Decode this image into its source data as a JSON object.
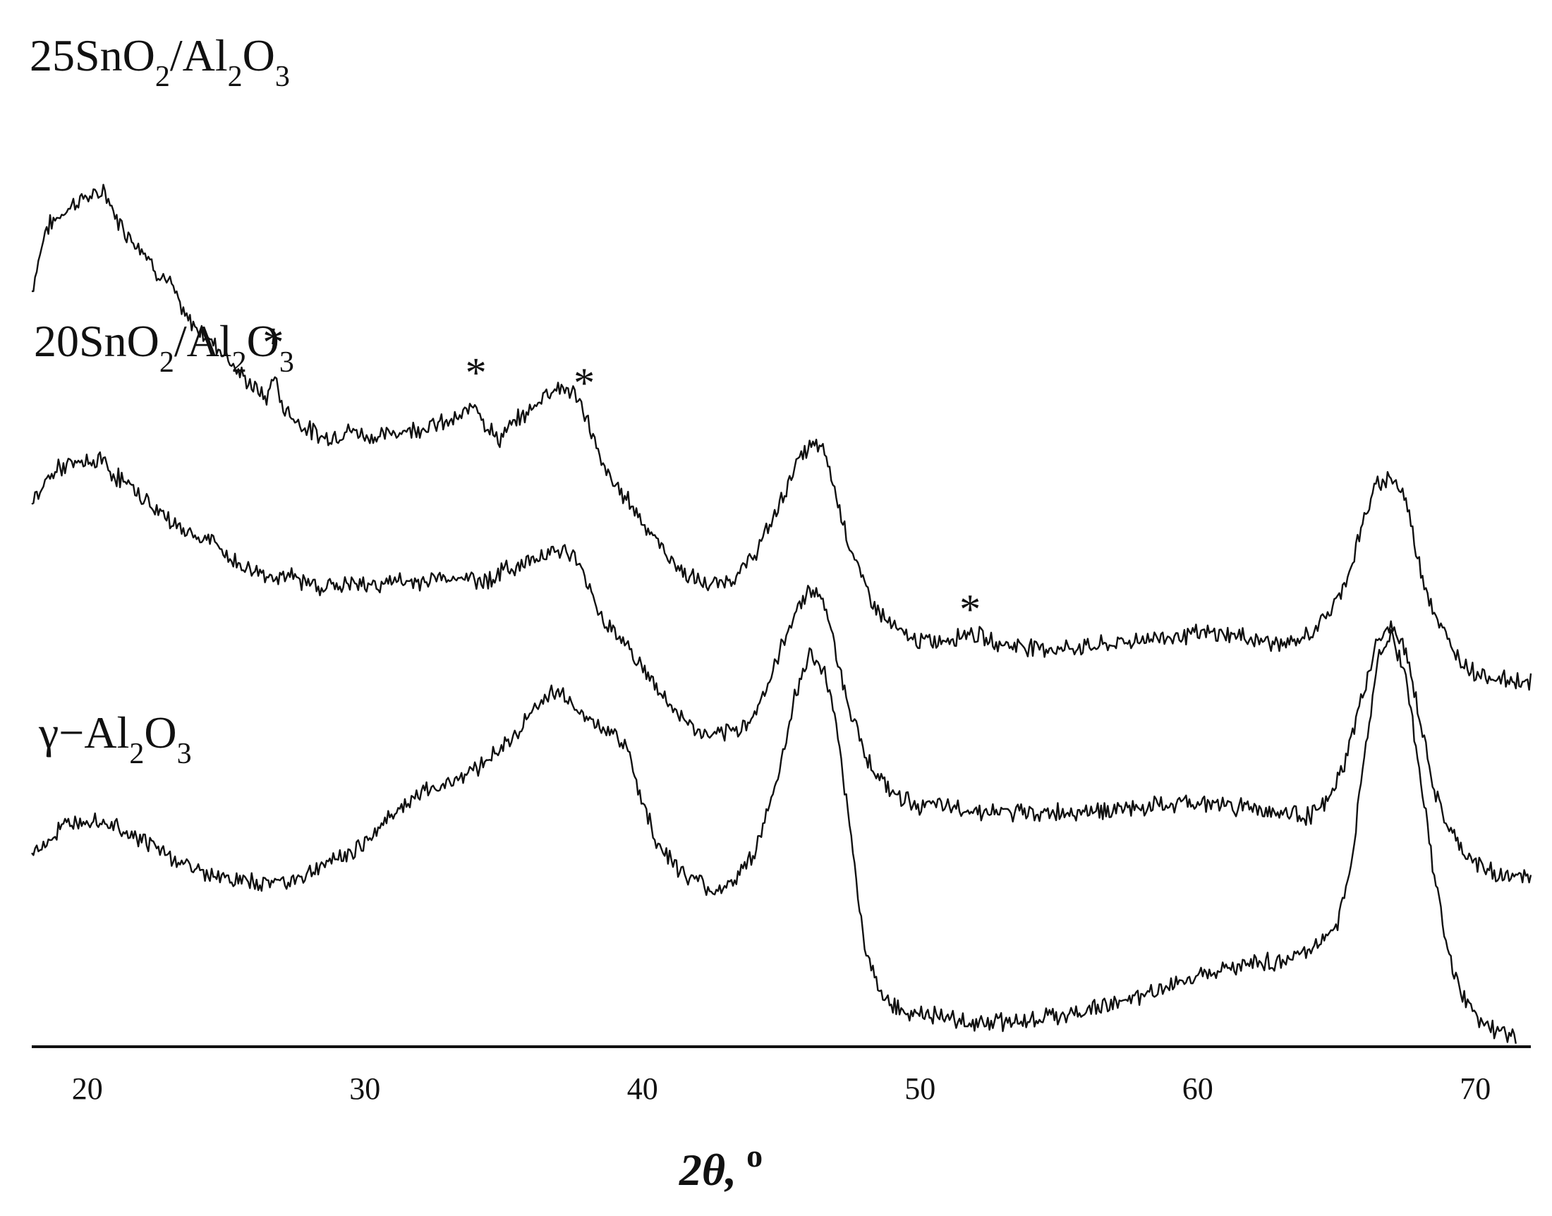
{
  "chart_data": {
    "type": "line",
    "title": "",
    "xlabel_main": "2θ,",
    "xlabel_unit": "o",
    "ylabel": "",
    "xlim": [
      18,
      72
    ],
    "ylim": [
      -0.05,
      3.8
    ],
    "x_ticks": [
      20,
      30,
      40,
      50,
      60,
      70
    ],
    "grid": false,
    "peak_marker_symbol": "*",
    "series": [
      {
        "name_parts": [
          "25SnO",
          "2",
          "/Al",
          "2",
          "O",
          "3"
        ],
        "offset": 1.25,
        "points": [
          [
            18,
            2.95
          ],
          [
            18.5,
            3.2
          ],
          [
            19,
            3.25
          ],
          [
            19.5,
            3.3
          ],
          [
            20,
            3.33
          ],
          [
            20.3,
            3.32
          ],
          [
            20.6,
            3.36
          ],
          [
            21,
            3.25
          ],
          [
            21.5,
            3.17
          ],
          [
            22,
            3.12
          ],
          [
            22.5,
            3.03
          ],
          [
            23,
            2.98
          ],
          [
            23.5,
            2.85
          ],
          [
            24,
            2.8
          ],
          [
            24.5,
            2.75
          ],
          [
            25,
            2.7
          ],
          [
            25.5,
            2.62
          ],
          [
            26,
            2.57
          ],
          [
            26.5,
            2.52
          ],
          [
            26.7,
            2.63
          ],
          [
            27,
            2.5
          ],
          [
            27.5,
            2.44
          ],
          [
            28,
            2.4
          ],
          [
            28.5,
            2.37
          ],
          [
            29,
            2.38
          ],
          [
            29.5,
            2.4
          ],
          [
            30,
            2.38
          ],
          [
            30.5,
            2.37
          ],
          [
            31,
            2.39
          ],
          [
            31.5,
            2.4
          ],
          [
            32,
            2.41
          ],
          [
            32.5,
            2.42
          ],
          [
            33,
            2.43
          ],
          [
            33.5,
            2.45
          ],
          [
            34,
            2.52
          ],
          [
            34.3,
            2.43
          ],
          [
            34.8,
            2.36
          ],
          [
            35.5,
            2.44
          ],
          [
            36,
            2.48
          ],
          [
            36.5,
            2.55
          ],
          [
            37,
            2.57
          ],
          [
            37.5,
            2.55
          ],
          [
            38,
            2.45
          ],
          [
            38.5,
            2.27
          ],
          [
            39,
            2.18
          ],
          [
            39.5,
            2.12
          ],
          [
            40,
            2.04
          ],
          [
            40.5,
            1.96
          ],
          [
            41,
            1.89
          ],
          [
            41.5,
            1.83
          ],
          [
            42,
            1.8
          ],
          [
            42.5,
            1.78
          ],
          [
            43,
            1.8
          ],
          [
            43.5,
            1.83
          ],
          [
            44,
            1.9
          ],
          [
            44.5,
            2.0
          ],
          [
            45,
            2.12
          ],
          [
            45.5,
            2.26
          ],
          [
            46,
            2.33
          ],
          [
            46.3,
            2.34
          ],
          [
            46.6,
            2.3
          ],
          [
            47,
            2.13
          ],
          [
            47.5,
            1.93
          ],
          [
            48,
            1.78
          ],
          [
            48.5,
            1.68
          ],
          [
            49,
            1.62
          ],
          [
            49.5,
            1.58
          ],
          [
            50,
            1.56
          ],
          [
            50.5,
            1.56
          ],
          [
            51,
            1.57
          ],
          [
            51.8,
            1.6
          ],
          [
            52.5,
            1.56
          ],
          [
            53,
            1.55
          ],
          [
            54,
            1.54
          ],
          [
            55,
            1.53
          ],
          [
            56,
            1.54
          ],
          [
            57,
            1.55
          ],
          [
            58,
            1.57
          ],
          [
            59,
            1.58
          ],
          [
            60,
            1.59
          ],
          [
            61,
            1.59
          ],
          [
            62,
            1.57
          ],
          [
            63,
            1.55
          ],
          [
            63.5,
            1.55
          ],
          [
            64,
            1.59
          ],
          [
            64.5,
            1.64
          ],
          [
            65,
            1.72
          ],
          [
            65.5,
            1.85
          ],
          [
            66,
            2.05
          ],
          [
            66.5,
            2.19
          ],
          [
            67,
            2.22
          ],
          [
            67.5,
            2.12
          ],
          [
            68,
            1.86
          ],
          [
            68.5,
            1.68
          ],
          [
            69,
            1.56
          ],
          [
            69.5,
            1.48
          ],
          [
            70,
            1.44
          ],
          [
            70.5,
            1.42
          ],
          [
            71,
            1.41
          ],
          [
            72,
            1.4
          ]
        ],
        "peak_markers": [
          [
            26.7,
            2.68
          ],
          [
            34.0,
            2.56
          ],
          [
            37.9,
            2.52
          ],
          [
            51.8,
            1.62
          ]
        ]
      },
      {
        "name_parts": [
          "20SnO",
          "2",
          "/Al",
          "2",
          "O",
          "3"
        ],
        "offset": 0.55,
        "points": [
          [
            18,
            2.1
          ],
          [
            18.5,
            2.2
          ],
          [
            19,
            2.25
          ],
          [
            19.5,
            2.26
          ],
          [
            20,
            2.27
          ],
          [
            20.5,
            2.28
          ],
          [
            21,
            2.22
          ],
          [
            21.5,
            2.18
          ],
          [
            22,
            2.13
          ],
          [
            22.5,
            2.08
          ],
          [
            23,
            2.04
          ],
          [
            23.5,
            2.0
          ],
          [
            24,
            1.97
          ],
          [
            24.5,
            1.96
          ],
          [
            25,
            1.9
          ],
          [
            25.5,
            1.86
          ],
          [
            26,
            1.84
          ],
          [
            26.5,
            1.82
          ],
          [
            27,
            1.82
          ],
          [
            27.5,
            1.81
          ],
          [
            28,
            1.79
          ],
          [
            28.5,
            1.78
          ],
          [
            29,
            1.78
          ],
          [
            29.5,
            1.79
          ],
          [
            30,
            1.78
          ],
          [
            30.5,
            1.79
          ],
          [
            31,
            1.8
          ],
          [
            31.5,
            1.79
          ],
          [
            32,
            1.8
          ],
          [
            32.5,
            1.81
          ],
          [
            33,
            1.81
          ],
          [
            33.5,
            1.82
          ],
          [
            34,
            1.8
          ],
          [
            34.5,
            1.81
          ],
          [
            35,
            1.84
          ],
          [
            35.5,
            1.86
          ],
          [
            36,
            1.88
          ],
          [
            36.5,
            1.92
          ],
          [
            37,
            1.92
          ],
          [
            37.5,
            1.9
          ],
          [
            38,
            1.8
          ],
          [
            38.5,
            1.66
          ],
          [
            39,
            1.6
          ],
          [
            39.5,
            1.54
          ],
          [
            40,
            1.45
          ],
          [
            40.5,
            1.38
          ],
          [
            41,
            1.3
          ],
          [
            41.5,
            1.25
          ],
          [
            42,
            1.2
          ],
          [
            42.5,
            1.18
          ],
          [
            43,
            1.19
          ],
          [
            43.5,
            1.21
          ],
          [
            44,
            1.27
          ],
          [
            44.5,
            1.38
          ],
          [
            45,
            1.53
          ],
          [
            45.5,
            1.68
          ],
          [
            46,
            1.77
          ],
          [
            46.3,
            1.75
          ],
          [
            46.6,
            1.7
          ],
          [
            47,
            1.5
          ],
          [
            47.5,
            1.28
          ],
          [
            48,
            1.12
          ],
          [
            48.5,
            1.02
          ],
          [
            49,
            0.96
          ],
          [
            49.5,
            0.93
          ],
          [
            50,
            0.91
          ],
          [
            51,
            0.9
          ],
          [
            52,
            0.89
          ],
          [
            53,
            0.88
          ],
          [
            54,
            0.88
          ],
          [
            55,
            0.88
          ],
          [
            56,
            0.89
          ],
          [
            57,
            0.89
          ],
          [
            58,
            0.9
          ],
          [
            59,
            0.91
          ],
          [
            60,
            0.92
          ],
          [
            61,
            0.91
          ],
          [
            62,
            0.9
          ],
          [
            63,
            0.88
          ],
          [
            64,
            0.87
          ],
          [
            64.5,
            0.9
          ],
          [
            65,
            0.99
          ],
          [
            65.5,
            1.15
          ],
          [
            66,
            1.38
          ],
          [
            66.5,
            1.57
          ],
          [
            67,
            1.62
          ],
          [
            67.5,
            1.52
          ],
          [
            68,
            1.25
          ],
          [
            68.5,
            0.98
          ],
          [
            69,
            0.82
          ],
          [
            69.5,
            0.73
          ],
          [
            70,
            0.68
          ],
          [
            70.5,
            0.65
          ],
          [
            71,
            0.63
          ],
          [
            72,
            0.62
          ]
        ],
        "peak_markers": []
      },
      {
        "name_parts": [
          "γ−Al",
          "2",
          "O",
          "3"
        ],
        "offset": 0.0,
        "points": [
          [
            18,
            0.72
          ],
          [
            18.5,
            0.76
          ],
          [
            19,
            0.81
          ],
          [
            19.5,
            0.85
          ],
          [
            20,
            0.86
          ],
          [
            20.5,
            0.85
          ],
          [
            21,
            0.83
          ],
          [
            21.5,
            0.8
          ],
          [
            22,
            0.77
          ],
          [
            22.5,
            0.74
          ],
          [
            23,
            0.7
          ],
          [
            23.5,
            0.68
          ],
          [
            24,
            0.65
          ],
          [
            24.5,
            0.63
          ],
          [
            25,
            0.62
          ],
          [
            25.5,
            0.61
          ],
          [
            26,
            0.6
          ],
          [
            26.5,
            0.6
          ],
          [
            27,
            0.61
          ],
          [
            27.5,
            0.62
          ],
          [
            28,
            0.64
          ],
          [
            28.5,
            0.67
          ],
          [
            29,
            0.7
          ],
          [
            29.5,
            0.72
          ],
          [
            30,
            0.76
          ],
          [
            30.5,
            0.82
          ],
          [
            31,
            0.88
          ],
          [
            31.5,
            0.92
          ],
          [
            32,
            0.95
          ],
          [
            32.5,
            0.98
          ],
          [
            33,
            1.0
          ],
          [
            33.5,
            1.03
          ],
          [
            34,
            1.06
          ],
          [
            34.5,
            1.1
          ],
          [
            35,
            1.14
          ],
          [
            35.5,
            1.2
          ],
          [
            36,
            1.28
          ],
          [
            36.5,
            1.34
          ],
          [
            37,
            1.36
          ],
          [
            37.5,
            1.32
          ],
          [
            38,
            1.25
          ],
          [
            38.5,
            1.21
          ],
          [
            39,
            1.2
          ],
          [
            39.5,
            1.12
          ],
          [
            40,
            0.92
          ],
          [
            40.5,
            0.77
          ],
          [
            41,
            0.69
          ],
          [
            41.5,
            0.64
          ],
          [
            42,
            0.6
          ],
          [
            42.5,
            0.57
          ],
          [
            43,
            0.59
          ],
          [
            43.5,
            0.63
          ],
          [
            44,
            0.72
          ],
          [
            44.5,
            0.87
          ],
          [
            45,
            1.08
          ],
          [
            45.5,
            1.35
          ],
          [
            46,
            1.5
          ],
          [
            46.3,
            1.48
          ],
          [
            46.6,
            1.42
          ],
          [
            47,
            1.2
          ],
          [
            47.5,
            0.8
          ],
          [
            48,
            0.35
          ],
          [
            48.5,
            0.18
          ],
          [
            49,
            0.12
          ],
          [
            49.5,
            0.09
          ],
          [
            50,
            0.08
          ],
          [
            51,
            0.06
          ],
          [
            52,
            0.05
          ],
          [
            53,
            0.05
          ],
          [
            54,
            0.06
          ],
          [
            55,
            0.07
          ],
          [
            56,
            0.1
          ],
          [
            57,
            0.12
          ],
          [
            58,
            0.15
          ],
          [
            59,
            0.19
          ],
          [
            60,
            0.24
          ],
          [
            61,
            0.27
          ],
          [
            62,
            0.28
          ],
          [
            63,
            0.29
          ],
          [
            64,
            0.33
          ],
          [
            65,
            0.43
          ],
          [
            65.5,
            0.65
          ],
          [
            66,
            1.1
          ],
          [
            66.5,
            1.5
          ],
          [
            67,
            1.58
          ],
          [
            67.5,
            1.42
          ],
          [
            68,
            1.05
          ],
          [
            68.5,
            0.65
          ],
          [
            69,
            0.32
          ],
          [
            69.5,
            0.15
          ],
          [
            70,
            0.08
          ],
          [
            70.5,
            0.03
          ],
          [
            71,
            0.0
          ],
          [
            71.5,
            -0.02
          ]
        ],
        "peak_markers": []
      }
    ]
  }
}
